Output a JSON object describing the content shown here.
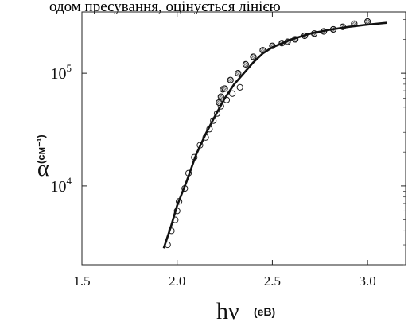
{
  "header_text": "одом пресування, оцінується лінією",
  "chart_data": {
    "type": "scatter",
    "xlabel": "hν",
    "xunit": "(eB)",
    "ylabel": "α",
    "yunit": "(см⁻¹)",
    "x_ticks": [
      "1.5",
      "2.0",
      "2.5",
      "3.0"
    ],
    "y_ticks": [
      {
        "base": "10",
        "exp": "4"
      },
      {
        "base": "10",
        "exp": "5"
      }
    ],
    "xlim": [
      1.5,
      3.2
    ],
    "ylim": [
      2000,
      350000
    ],
    "y_scale": "log",
    "series": [
      {
        "marker": "circle-open",
        "points": [
          [
            1.95,
            3000
          ],
          [
            1.97,
            4000
          ],
          [
            1.99,
            5000
          ],
          [
            2.0,
            6000
          ],
          [
            2.01,
            7300
          ],
          [
            2.04,
            9500
          ],
          [
            2.06,
            13000
          ],
          [
            2.09,
            18000
          ],
          [
            2.12,
            23000
          ],
          [
            2.15,
            27000
          ],
          [
            2.17,
            32000
          ],
          [
            2.19,
            38000
          ],
          [
            2.21,
            44000
          ],
          [
            2.23,
            51000
          ],
          [
            2.26,
            58000
          ],
          [
            2.29,
            66000
          ],
          [
            2.33,
            75000
          ]
        ]
      },
      {
        "marker": "circle-hatched",
        "points": [
          [
            2.22,
            55000
          ],
          [
            2.23,
            62000
          ],
          [
            2.24,
            72000
          ],
          [
            2.25,
            73000
          ],
          [
            2.28,
            87000
          ],
          [
            2.32,
            100000
          ],
          [
            2.36,
            120000
          ],
          [
            2.4,
            140000
          ],
          [
            2.45,
            160000
          ],
          [
            2.5,
            175000
          ],
          [
            2.55,
            185000
          ],
          [
            2.58,
            190000
          ],
          [
            2.62,
            200000
          ],
          [
            2.67,
            215000
          ],
          [
            2.72,
            225000
          ],
          [
            2.77,
            235000
          ],
          [
            2.82,
            245000
          ],
          [
            2.87,
            258000
          ],
          [
            2.93,
            275000
          ],
          [
            3.0,
            288000
          ]
        ]
      },
      {
        "marker": "line",
        "points": [
          [
            1.93,
            2800
          ],
          [
            1.97,
            4500
          ],
          [
            2.0,
            6700
          ],
          [
            2.05,
            11000
          ],
          [
            2.1,
            19000
          ],
          [
            2.15,
            29000
          ],
          [
            2.2,
            42000
          ],
          [
            2.25,
            60000
          ],
          [
            2.3,
            80000
          ],
          [
            2.35,
            100000
          ],
          [
            2.4,
            125000
          ],
          [
            2.45,
            150000
          ],
          [
            2.5,
            170000
          ],
          [
            2.6,
            200000
          ],
          [
            2.7,
            225000
          ],
          [
            2.8,
            243000
          ],
          [
            2.9,
            258000
          ],
          [
            3.0,
            270000
          ],
          [
            3.1,
            280000
          ]
        ]
      }
    ],
    "grid": false
  }
}
